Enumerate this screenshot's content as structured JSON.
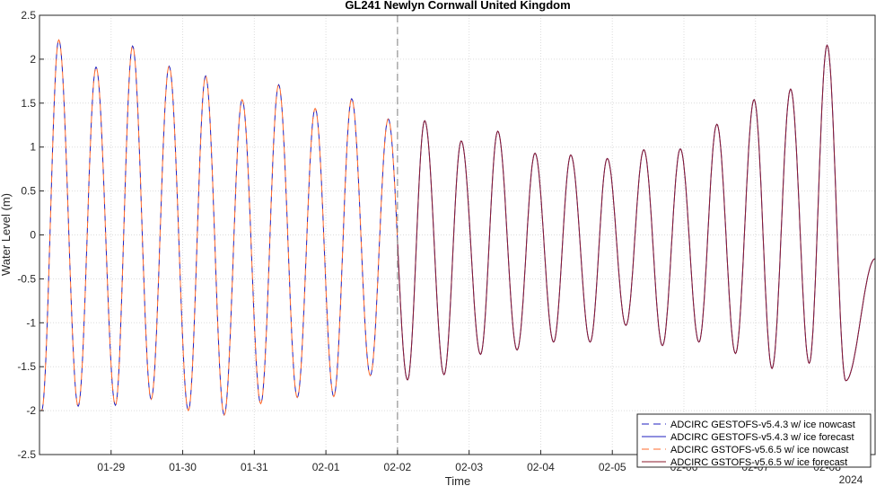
{
  "chart_data": {
    "type": "line",
    "title": "GL241 Newlyn Cornwall United Kingdom",
    "xlabel": "Time",
    "ylabel": "Water Level (m)",
    "year_label": "2024",
    "xlim": [
      0,
      11.67
    ],
    "ylim": [
      -2.5,
      2.5
    ],
    "x_unit": "days",
    "x_tick_values": [
      1,
      2,
      3,
      4,
      5,
      6,
      7,
      8,
      9,
      10,
      11
    ],
    "x_tick_labels": [
      "01-29",
      "01-30",
      "01-31",
      "02-01",
      "02-02",
      "02-03",
      "02-04",
      "02-05",
      "02-06",
      "02-07",
      "02-08"
    ],
    "y_ticks": [
      -2.5,
      -2,
      -1.5,
      -1,
      -0.5,
      0,
      0.5,
      1,
      1.5,
      2,
      2.5
    ],
    "y_tick_labels": [
      "-2.5",
      "-2",
      "-1.5",
      "-1",
      "-0.5",
      "0",
      "0.5",
      "1",
      "1.5",
      "2",
      "2.5"
    ],
    "grid": true,
    "legend_position": "bottom-right",
    "nowcast_end": 5,
    "series": [
      {
        "name": "ADCIRC GESTOFS-v5.4.3 w/ ice nowcast",
        "color": "#1f1fbf",
        "style": "dashed",
        "segment": "nowcast"
      },
      {
        "name": "ADCIRC GESTOFS-v5.4.3 w/ ice forecast",
        "color": "#1f1fbf",
        "style": "solid",
        "segment": "forecast"
      },
      {
        "name": "ADCIRC GSTOFS-v5.6.5 w/ ice nowcast",
        "color": "#ff6a2b",
        "style": "dashed",
        "segment": "nowcast"
      },
      {
        "name": "ADCIRC GSTOFS-v5.6.5 w/ ice forecast",
        "color": "#8b1a2b",
        "style": "solid",
        "segment": "forecast"
      }
    ],
    "extrema": [
      {
        "t": 0.03,
        "v": -2.0
      },
      {
        "t": 0.27,
        "v": 2.22
      },
      {
        "t": 0.54,
        "v": -1.95
      },
      {
        "t": 0.79,
        "v": 1.91
      },
      {
        "t": 1.06,
        "v": -1.94
      },
      {
        "t": 1.3,
        "v": 2.15
      },
      {
        "t": 1.56,
        "v": -1.87
      },
      {
        "t": 1.81,
        "v": 1.92
      },
      {
        "t": 2.08,
        "v": -2.0
      },
      {
        "t": 2.32,
        "v": 1.81
      },
      {
        "t": 2.58,
        "v": -2.05
      },
      {
        "t": 2.83,
        "v": 1.54
      },
      {
        "t": 3.09,
        "v": -1.92
      },
      {
        "t": 3.34,
        "v": 1.71
      },
      {
        "t": 3.6,
        "v": -1.85
      },
      {
        "t": 3.85,
        "v": 1.44
      },
      {
        "t": 4.11,
        "v": -1.84
      },
      {
        "t": 4.36,
        "v": 1.55
      },
      {
        "t": 4.62,
        "v": -1.6
      },
      {
        "t": 4.87,
        "v": 1.32
      },
      {
        "t": 5.14,
        "v": -1.65
      },
      {
        "t": 5.38,
        "v": 1.3
      },
      {
        "t": 5.65,
        "v": -1.59
      },
      {
        "t": 5.89,
        "v": 1.07
      },
      {
        "t": 6.16,
        "v": -1.36
      },
      {
        "t": 6.4,
        "v": 1.18
      },
      {
        "t": 6.67,
        "v": -1.31
      },
      {
        "t": 6.92,
        "v": 0.93
      },
      {
        "t": 7.18,
        "v": -1.22
      },
      {
        "t": 7.42,
        "v": 0.91
      },
      {
        "t": 7.69,
        "v": -1.22
      },
      {
        "t": 7.93,
        "v": 0.87
      },
      {
        "t": 8.19,
        "v": -1.03
      },
      {
        "t": 8.44,
        "v": 0.97
      },
      {
        "t": 8.7,
        "v": -1.26
      },
      {
        "t": 8.95,
        "v": 0.98
      },
      {
        "t": 9.21,
        "v": -1.22
      },
      {
        "t": 9.46,
        "v": 1.26
      },
      {
        "t": 9.72,
        "v": -1.35
      },
      {
        "t": 9.98,
        "v": 1.54
      },
      {
        "t": 10.23,
        "v": -1.52
      },
      {
        "t": 10.49,
        "v": 1.66
      },
      {
        "t": 10.75,
        "v": -1.46
      },
      {
        "t": 11.0,
        "v": 2.16
      },
      {
        "t": 11.26,
        "v": -1.66
      },
      {
        "t": 11.67,
        "v": -0.27
      }
    ]
  }
}
